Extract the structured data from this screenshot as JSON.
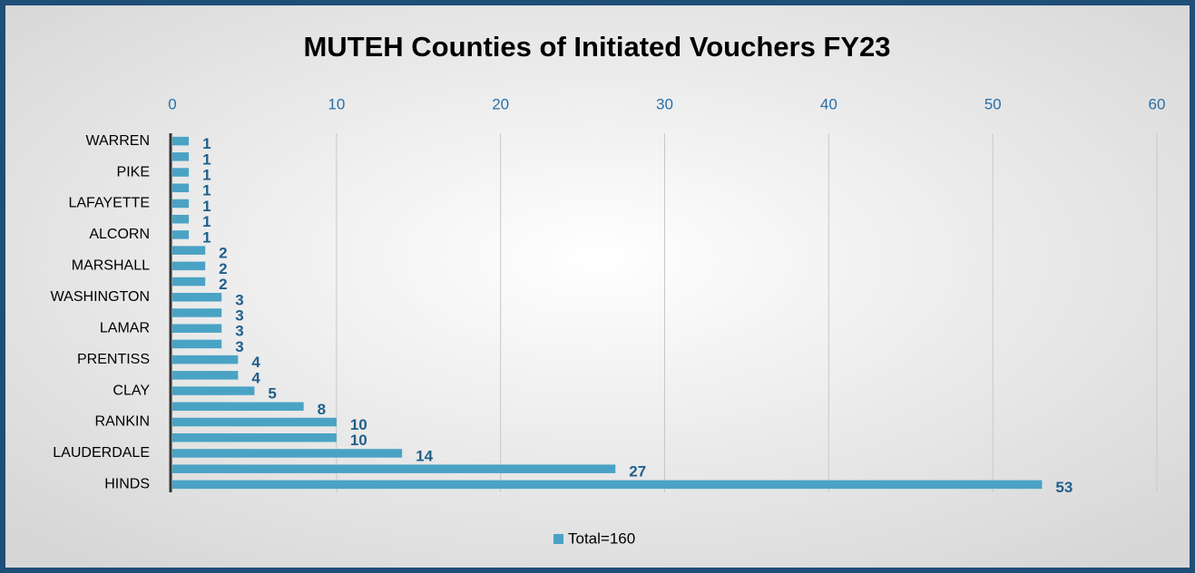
{
  "chart_data": {
    "type": "bar",
    "orientation": "horizontal",
    "title": "MUTEH Counties of Initiated Vouchers FY23",
    "categories": [
      "WARREN",
      null,
      "PIKE",
      null,
      "LAFAYETTE",
      null,
      "ALCORN",
      null,
      "MARSHALL",
      null,
      "WASHINGTON",
      null,
      "LAMAR",
      null,
      "PRENTISS",
      null,
      "CLAY",
      null,
      "RANKIN",
      null,
      "LAUDERDALE",
      null,
      "HINDS"
    ],
    "series": [
      {
        "name": "Total=160",
        "color": "#4aa3c4",
        "values": [
          1,
          1,
          1,
          1,
          1,
          1,
          1,
          2,
          2,
          2,
          3,
          3,
          3,
          3,
          4,
          4,
          5,
          8,
          10,
          10,
          14,
          27,
          53
        ]
      }
    ],
    "xlim": [
      0,
      60
    ],
    "xticks": [
      0,
      10,
      20,
      30,
      40,
      50,
      60
    ],
    "grid": true,
    "legend": "bottom"
  }
}
